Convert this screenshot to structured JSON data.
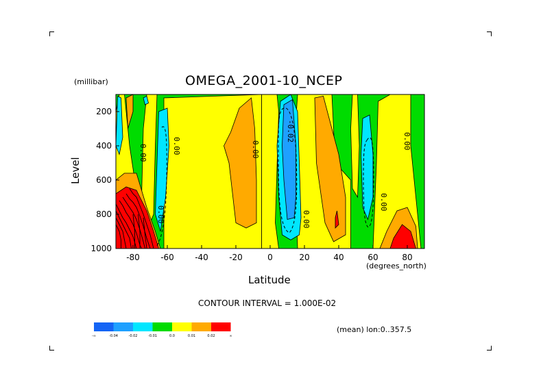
{
  "chart_data": {
    "type": "heatmap",
    "title": "OMEGA_2001-10_NCEP",
    "xlabel": "Latitude",
    "x_units": "(degrees_north)",
    "ylabel": "Level",
    "y_units": "(millibar)",
    "xlim": [
      -90,
      90
    ],
    "ylim": [
      1000,
      100
    ],
    "x_ticks": [
      -80,
      -60,
      -40,
      -20,
      0,
      20,
      40,
      60,
      80
    ],
    "y_ticks": [
      200,
      400,
      600,
      800,
      1000
    ],
    "contour_interval_label": "CONTOUR INTERVAL = 1.000E-02",
    "mean_label": "(mean) lon:0..357.5",
    "contour_labels": [
      "0.00",
      "0.00",
      "0.00",
      "-0.02",
      "0.00",
      "0.00",
      "0.00",
      "0.00"
    ],
    "legend": {
      "levels": [
        "-∞",
        "-0.04",
        "-0.02",
        "-0.01",
        "0.0",
        "0.01",
        "0.02",
        "∞"
      ],
      "colors": [
        "#1464f5",
        "#1ea0ff",
        "#00e6ff",
        "#00dc00",
        "#ffff00",
        "#ffaa00",
        "#ff0000"
      ]
    },
    "background_color": "#00dc00",
    "regions": [
      {
        "color": "#ffff00",
        "points": [
          [
            -62,
            120
          ],
          [
            -5,
            100
          ],
          [
            -5,
            1000
          ],
          [
            -62,
            1000
          ]
        ]
      },
      {
        "color": "#ffff00",
        "points": [
          [
            -5,
            100
          ],
          [
            4,
            100
          ],
          [
            5,
            200
          ],
          [
            3,
            850
          ],
          [
            5,
            1000
          ],
          [
            -5,
            1000
          ]
        ]
      },
      {
        "color": "#ffff00",
        "points": [
          [
            16,
            100
          ],
          [
            36,
            100
          ],
          [
            38,
            500
          ],
          [
            47,
            600
          ],
          [
            47,
            1000
          ],
          [
            16,
            1000
          ],
          [
            14,
            400
          ]
        ]
      },
      {
        "color": "#ffff00",
        "points": [
          [
            63,
            140
          ],
          [
            70,
            100
          ],
          [
            82,
            100
          ],
          [
            82,
            400
          ],
          [
            85,
            700
          ],
          [
            88,
            1000
          ],
          [
            60,
            1000
          ],
          [
            62,
            500
          ]
        ]
      },
      {
        "color": "#ffff00",
        "points": [
          [
            -88,
            100
          ],
          [
            -85,
            100
          ],
          [
            -82,
            400
          ],
          [
            -79,
            600
          ],
          [
            -90,
            600
          ],
          [
            -90,
            200
          ]
        ]
      },
      {
        "color": "#ffff00",
        "points": [
          [
            -72,
            100
          ],
          [
            -66,
            100
          ],
          [
            -67,
            400
          ],
          [
            -68,
            800
          ],
          [
            -72,
            900
          ],
          [
            -75,
            700
          ],
          [
            -74,
            300
          ]
        ]
      },
      {
        "color": "#ffff00",
        "points": [
          [
            48,
            100
          ],
          [
            51,
            100
          ],
          [
            52,
            400
          ],
          [
            51,
            700
          ],
          [
            48,
            650
          ],
          [
            47,
            300
          ]
        ]
      },
      {
        "color": "#ffaa00",
        "points": [
          [
            -18,
            180
          ],
          [
            -11,
            120
          ],
          [
            -9,
            300
          ],
          [
            -8,
            600
          ],
          [
            -8,
            850
          ],
          [
            -14,
            880
          ],
          [
            -20,
            850
          ],
          [
            -24,
            500
          ],
          [
            -27,
            400
          ],
          [
            -23,
            320
          ]
        ]
      },
      {
        "color": "#ffaa00",
        "points": [
          [
            26,
            120
          ],
          [
            31,
            110
          ],
          [
            36,
            300
          ],
          [
            40,
            450
          ],
          [
            44,
            700
          ],
          [
            44,
            920
          ],
          [
            37,
            960
          ],
          [
            32,
            850
          ],
          [
            27,
            500
          ]
        ]
      },
      {
        "color": "#ffaa00",
        "points": [
          [
            -90,
            600
          ],
          [
            -85,
            560
          ],
          [
            -78,
            560
          ],
          [
            -72,
            760
          ],
          [
            -67,
            900
          ],
          [
            -64,
            1000
          ],
          [
            -90,
            1000
          ]
        ]
      },
      {
        "color": "#ffaa00",
        "points": [
          [
            68,
            900
          ],
          [
            74,
            780
          ],
          [
            80,
            760
          ],
          [
            85,
            870
          ],
          [
            86,
            1000
          ],
          [
            64,
            1000
          ]
        ]
      },
      {
        "color": "#ffaa00",
        "points": [
          [
            -84,
            120
          ],
          [
            -80,
            100
          ],
          [
            -80,
            200
          ],
          [
            -83,
            300
          ]
        ]
      },
      {
        "color": "#ff0000",
        "points": [
          [
            -90,
            680
          ],
          [
            -84,
            640
          ],
          [
            -78,
            660
          ],
          [
            -72,
            780
          ],
          [
            -68,
            900
          ],
          [
            -65,
            1000
          ],
          [
            -90,
            1000
          ]
        ]
      },
      {
        "color": "#ff0000",
        "points": [
          [
            72,
            940
          ],
          [
            77,
            860
          ],
          [
            82,
            900
          ],
          [
            85,
            1000
          ],
          [
            70,
            1000
          ]
        ]
      },
      {
        "color": "#ff0000",
        "points": [
          [
            38,
            820
          ],
          [
            39,
            780
          ],
          [
            40,
            860
          ],
          [
            38,
            880
          ]
        ]
      },
      {
        "color": "#00e6ff",
        "points": [
          [
            -65,
            200
          ],
          [
            -60,
            180
          ],
          [
            -59,
            400
          ],
          [
            -61,
            700
          ],
          [
            -64,
            900
          ],
          [
            -67,
            800
          ],
          [
            -66,
            500
          ]
        ]
      },
      {
        "color": "#00e6ff",
        "points": [
          [
            -89,
            110
          ],
          [
            -87,
            120
          ],
          [
            -86,
            350
          ],
          [
            -88,
            450
          ],
          [
            -90,
            400
          ]
        ]
      },
      {
        "color": "#00e6ff",
        "points": [
          [
            6,
            140
          ],
          [
            12,
            100
          ],
          [
            16,
            200
          ],
          [
            17,
            500
          ],
          [
            18,
            820
          ],
          [
            17,
            920
          ],
          [
            12,
            950
          ],
          [
            7,
            920
          ],
          [
            5,
            700
          ],
          [
            4,
            400
          ]
        ]
      },
      {
        "color": "#00e6ff",
        "points": [
          [
            54,
            240
          ],
          [
            58,
            220
          ],
          [
            60,
            450
          ],
          [
            60,
            700
          ],
          [
            57,
            830
          ],
          [
            54,
            760
          ],
          [
            53,
            450
          ]
        ]
      },
      {
        "color": "#00e6ff",
        "points": [
          [
            -74,
            120
          ],
          [
            -72,
            110
          ],
          [
            -71,
            150
          ],
          [
            -73,
            160
          ]
        ]
      },
      {
        "color": "#1ea0ff",
        "points": [
          [
            8,
            160
          ],
          [
            13,
            130
          ],
          [
            15,
            400
          ],
          [
            15,
            700
          ],
          [
            14,
            820
          ],
          [
            10,
            830
          ],
          [
            8,
            600
          ],
          [
            7,
            400
          ]
        ]
      }
    ],
    "contour_lines": [
      [
        [
          -82,
          650
        ],
        [
          -80,
          680
        ],
        [
          -78,
          700
        ],
        [
          -76,
          750
        ],
        [
          -74,
          800
        ],
        [
          -72,
          860
        ],
        [
          -70,
          920
        ],
        [
          -68,
          1000
        ]
      ],
      [
        [
          -84,
          680
        ],
        [
          -82,
          710
        ],
        [
          -80,
          730
        ],
        [
          -78,
          760
        ],
        [
          -76,
          810
        ],
        [
          -74,
          870
        ],
        [
          -72,
          940
        ],
        [
          -70,
          1000
        ]
      ],
      [
        [
          -86,
          700
        ],
        [
          -84,
          730
        ],
        [
          -82,
          760
        ],
        [
          -80,
          790
        ],
        [
          -78,
          830
        ],
        [
          -76,
          890
        ],
        [
          -74,
          960
        ],
        [
          -73,
          1000
        ]
      ],
      [
        [
          -88,
          720
        ],
        [
          -86,
          750
        ],
        [
          -84,
          790
        ],
        [
          -82,
          820
        ],
        [
          -80,
          860
        ],
        [
          -78,
          910
        ],
        [
          -76,
          980
        ],
        [
          -75,
          1000
        ]
      ],
      [
        [
          -90,
          740
        ],
        [
          -88,
          780
        ],
        [
          -86,
          820
        ],
        [
          -84,
          850
        ],
        [
          -82,
          890
        ],
        [
          -80,
          930
        ],
        [
          -78,
          1000
        ]
      ],
      [
        [
          -90,
          780
        ],
        [
          -88,
          820
        ],
        [
          -86,
          860
        ],
        [
          -84,
          900
        ],
        [
          -82,
          940
        ],
        [
          -81,
          1000
        ]
      ],
      [
        [
          -90,
          820
        ],
        [
          -88,
          860
        ],
        [
          -86,
          900
        ],
        [
          -85,
          950
        ],
        [
          -84,
          1000
        ]
      ],
      [
        [
          -90,
          860
        ],
        [
          -88,
          900
        ],
        [
          -87,
          950
        ],
        [
          -87,
          1000
        ]
      ],
      [
        [
          -80,
          800
        ],
        [
          -79,
          900
        ],
        [
          -79,
          1000
        ]
      ],
      [
        [
          -77,
          800
        ],
        [
          -76,
          900
        ],
        [
          -76,
          1000
        ]
      ],
      [
        [
          -74,
          820
        ],
        [
          -73,
          920
        ],
        [
          -72,
          1000
        ]
      ]
    ]
  }
}
